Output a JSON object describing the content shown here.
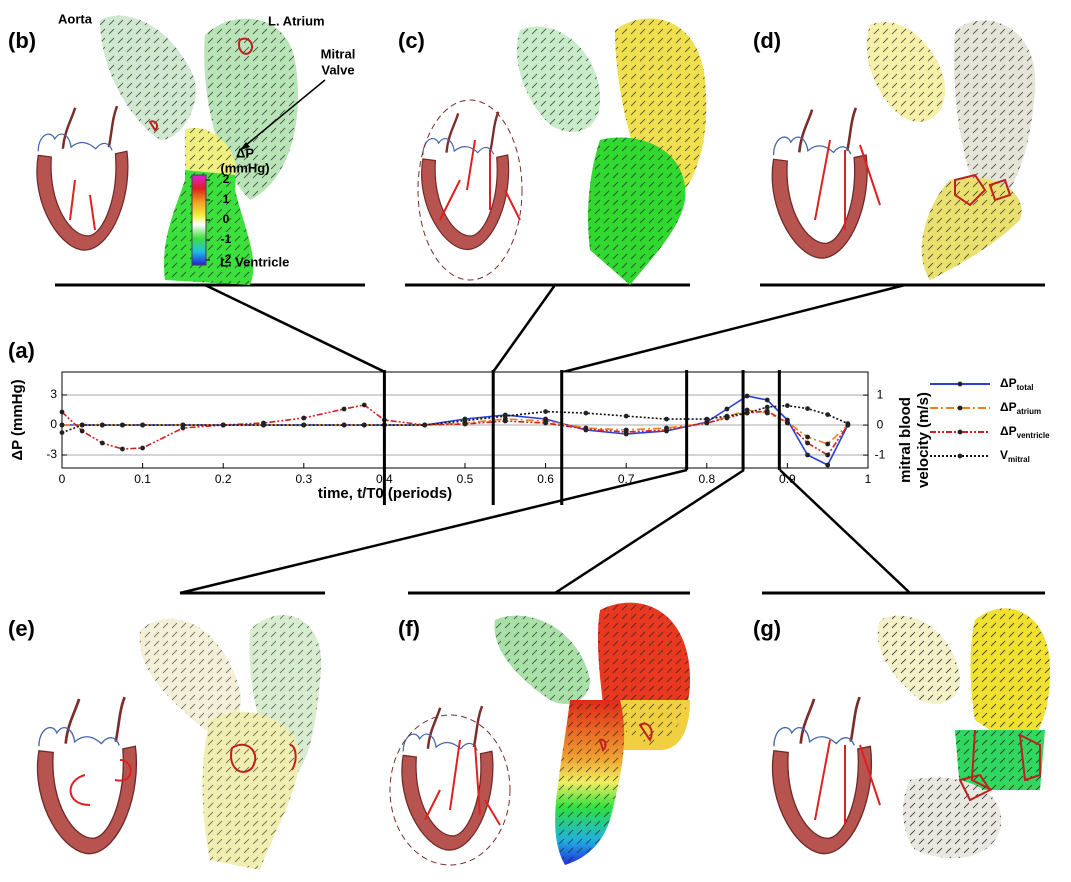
{
  "panels": [
    "(b)",
    "(c)",
    "(d)",
    "(e)",
    "(f)",
    "(g)"
  ],
  "annotations": {
    "aorta": "Aorta",
    "atrium": "L. Atrium",
    "mitral_valve": [
      "Mitral",
      "Valve"
    ],
    "ventricle": "L. Ventricle"
  },
  "colorbar": {
    "title": "ΔP",
    "unit": "(mmHg)",
    "ticks": [
      2,
      1,
      0,
      -1,
      -2
    ]
  },
  "chart_data": {
    "type": "line",
    "panel": "(a)",
    "xlabel": "time, t/T0 (periods)",
    "ylabel": "ΔP (mmHg)",
    "y2label": [
      "mitral blood",
      "velocity (m/s)"
    ],
    "x": [
      0,
      0.025,
      0.05,
      0.075,
      0.1,
      0.15,
      0.2,
      0.25,
      0.3,
      0.35,
      0.375,
      0.4,
      0.45,
      0.5,
      0.55,
      0.6,
      0.65,
      0.7,
      0.75,
      0.8,
      0.825,
      0.85,
      0.875,
      0.9,
      0.925,
      0.95,
      0.975
    ],
    "series": [
      {
        "name": "ΔP",
        "name_sub": "total",
        "color": "#2a3fd8",
        "dash": "none",
        "values": [
          0,
          0,
          0,
          0,
          0,
          0,
          0,
          0,
          0,
          0,
          0,
          0,
          0,
          0.6,
          1.0,
          0.6,
          -0.5,
          -0.9,
          -0.6,
          0.3,
          1.6,
          2.9,
          2.5,
          0.5,
          -3.0,
          -4.0,
          0
        ]
      },
      {
        "name": "ΔP",
        "name_sub": "atrium",
        "color": "#f08020",
        "dash": "8 3 2 3",
        "values": [
          0,
          0,
          0,
          0,
          0,
          0,
          0,
          0,
          0,
          0,
          0,
          0,
          0,
          0.2,
          0.6,
          0.4,
          -0.3,
          -0.5,
          -0.3,
          0.2,
          0.8,
          1.5,
          1.2,
          0.3,
          -1.2,
          -1.9,
          0
        ]
      },
      {
        "name": "ΔP",
        "name_sub": "ventricle",
        "color": "#d42020",
        "dash": "6 2 2 2 2 2",
        "values": [
          1.3,
          -0.6,
          -1.8,
          -2.4,
          -2.3,
          -0.3,
          0,
          0.2,
          0.7,
          1.6,
          2.0,
          0.5,
          0,
          0.1,
          0.4,
          0.2,
          -0.4,
          -0.7,
          -0.5,
          0.2,
          0.7,
          1.2,
          1.4,
          0.2,
          -1.8,
          -3.0,
          0
        ]
      },
      {
        "name": "V",
        "name_sub": "mitral",
        "color": "#111111",
        "dash": "2 2",
        "axis": "y2",
        "values": [
          -0.25,
          0,
          0,
          0,
          0,
          0,
          0,
          0,
          0,
          0,
          0,
          0,
          0,
          0.15,
          0.3,
          0.45,
          0.4,
          0.3,
          0.2,
          0.2,
          0.3,
          0.4,
          0.6,
          0.65,
          0.55,
          0.35,
          0.05
        ]
      }
    ],
    "xlim": [
      0,
      1
    ],
    "xticks": [
      0,
      0.1,
      0.2,
      0.3,
      0.4,
      0.5,
      0.6,
      0.7,
      0.8,
      0.9,
      1
    ],
    "ylim": [
      -4.3,
      5.3
    ],
    "yticks": [
      3,
      0,
      -3
    ],
    "y2lim": [
      -1.43,
      1.77
    ],
    "y2ticks": [
      1,
      0,
      -1
    ],
    "grid": true,
    "legend": "right",
    "markers": [
      0.4,
      0.535,
      0.62,
      0.775,
      0.845,
      0.89
    ]
  }
}
